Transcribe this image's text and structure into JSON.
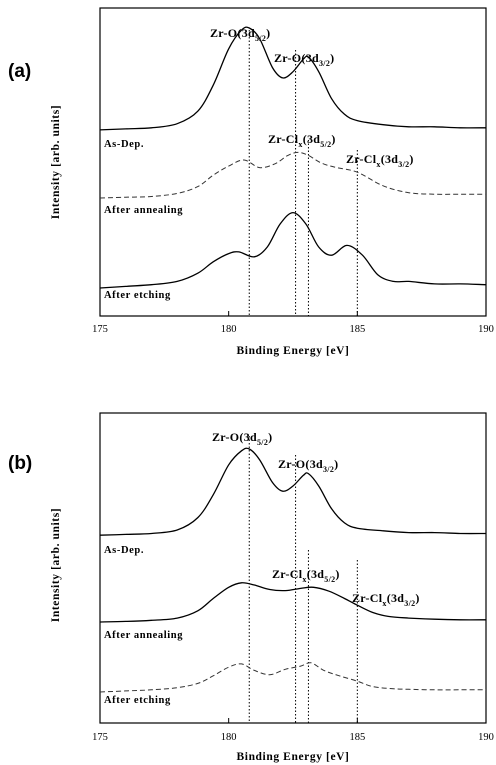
{
  "chart_data": [
    {
      "panel": "(a)",
      "type": "line",
      "xlabel": "Binding Energy [eV]",
      "ylabel": "Intensity [arb. units]",
      "xlim": [
        175,
        190
      ],
      "xticks": [
        "175",
        "180",
        "185",
        "190"
      ],
      "grid": false,
      "reference_lines_eV": [
        180.8,
        182.6,
        183.1,
        185.0
      ],
      "peak_labels": [
        {
          "main": "Zr-O(3d",
          "sub": "5/2",
          "tail": ")",
          "x": 180.8
        },
        {
          "main": "Zr-O(3d",
          "sub": "3/2",
          "tail": ")",
          "x": 183.1
        },
        {
          "main": "Zr-Cl",
          "sub": "x",
          "main2": "(3d",
          "sub2": "5/2",
          "tail": ")",
          "x": 182.6
        },
        {
          "main": "Zr-Cl",
          "sub": "x",
          "main2": "(3d",
          "sub2": "3/2",
          "tail": ")",
          "x": 185.0
        }
      ],
      "series": [
        {
          "name": "As-Dep.",
          "style": "solid",
          "x": [
            175,
            176,
            177,
            178,
            178.8,
            179.4,
            180.0,
            180.5,
            180.8,
            181.2,
            181.7,
            182.1,
            182.5,
            182.9,
            183.1,
            183.5,
            184.0,
            184.5,
            185.0,
            186.0,
            187.0,
            188.0,
            189.0,
            190
          ],
          "y": [
            0.02,
            0.03,
            0.04,
            0.08,
            0.2,
            0.45,
            0.8,
            0.98,
            1.0,
            0.9,
            0.62,
            0.52,
            0.58,
            0.7,
            0.72,
            0.58,
            0.32,
            0.17,
            0.11,
            0.07,
            0.05,
            0.05,
            0.04,
            0.04
          ]
        },
        {
          "name": "After annealing",
          "style": "dashed",
          "x": [
            175,
            176,
            177,
            178,
            178.8,
            179.4,
            180.0,
            180.6,
            181.2,
            181.8,
            182.3,
            182.7,
            183.1,
            183.6,
            184.2,
            185.0,
            186.0,
            187.0,
            188.0,
            189.0,
            190
          ],
          "y": [
            0.0,
            0.01,
            0.02,
            0.06,
            0.15,
            0.3,
            0.42,
            0.5,
            0.4,
            0.45,
            0.56,
            0.6,
            0.56,
            0.46,
            0.4,
            0.34,
            0.16,
            0.07,
            0.05,
            0.05,
            0.05
          ]
        },
        {
          "name": "After etching",
          "style": "solid",
          "x": [
            175,
            176,
            177,
            178,
            178.8,
            179.4,
            180.0,
            180.4,
            181.0,
            181.5,
            182.0,
            182.5,
            183.0,
            183.5,
            184.0,
            184.6,
            185.2,
            185.8,
            186.4,
            187.0,
            188.0,
            189.0,
            190
          ],
          "y": [
            0.0,
            0.02,
            0.04,
            0.08,
            0.18,
            0.32,
            0.42,
            0.44,
            0.38,
            0.5,
            0.78,
            0.92,
            0.78,
            0.5,
            0.4,
            0.52,
            0.4,
            0.16,
            0.08,
            0.08,
            0.05,
            0.05,
            0.04
          ]
        }
      ]
    },
    {
      "panel": "(b)",
      "type": "line",
      "xlabel": "Binding Energy [eV]",
      "ylabel": "Intensity [arb. units]",
      "xlim": [
        175,
        190
      ],
      "xticks": [
        "175",
        "180",
        "185",
        "190"
      ],
      "grid": false,
      "reference_lines_eV": [
        180.8,
        182.6,
        183.1,
        185.0
      ],
      "peak_labels": [
        {
          "main": "Zr-O(3d",
          "sub": "5/2",
          "tail": ")",
          "x": 180.8
        },
        {
          "main": "Zr-O(3d",
          "sub": "3/2",
          "tail": ")",
          "x": 183.1
        },
        {
          "main": "Zr-Cl",
          "sub": "x",
          "main2": "(3d",
          "sub2": "5/2",
          "tail": ")",
          "x": 182.6
        },
        {
          "main": "Zr-Cl",
          "sub": "x",
          "main2": "(3d",
          "sub2": "3/2",
          "tail": ")",
          "x": 185.0
        }
      ],
      "series": [
        {
          "name": "As-Dep.",
          "style": "solid",
          "x": [
            175,
            176,
            177,
            178,
            178.8,
            179.4,
            180.0,
            180.5,
            180.8,
            181.2,
            181.7,
            182.1,
            182.5,
            182.9,
            183.1,
            183.5,
            184.0,
            184.5,
            185.0,
            186.0,
            187.0,
            188.0,
            189.0,
            190
          ],
          "y": [
            0.02,
            0.03,
            0.04,
            0.08,
            0.22,
            0.48,
            0.82,
            0.98,
            1.0,
            0.88,
            0.62,
            0.52,
            0.58,
            0.7,
            0.72,
            0.58,
            0.32,
            0.16,
            0.1,
            0.07,
            0.05,
            0.05,
            0.04,
            0.04
          ]
        },
        {
          "name": "After annealing",
          "style": "solid",
          "x": [
            175,
            176,
            177,
            178,
            178.8,
            179.4,
            180.0,
            180.5,
            181.0,
            181.6,
            182.2,
            182.8,
            183.3,
            183.9,
            184.5,
            185.0,
            185.6,
            186.2,
            187.0,
            188.0,
            189.0,
            190
          ],
          "y": [
            0.0,
            0.01,
            0.03,
            0.07,
            0.2,
            0.42,
            0.62,
            0.7,
            0.66,
            0.58,
            0.56,
            0.6,
            0.62,
            0.55,
            0.42,
            0.3,
            0.17,
            0.1,
            0.07,
            0.05,
            0.04,
            0.04
          ]
        },
        {
          "name": "After etching",
          "style": "dashed",
          "x": [
            175,
            176,
            177,
            178,
            178.8,
            179.4,
            180.0,
            180.5,
            181.0,
            181.6,
            182.2,
            182.8,
            183.2,
            183.7,
            184.3,
            185.0,
            185.6,
            186.4,
            187.0,
            188.0,
            189.0,
            190
          ],
          "y": [
            0.0,
            0.02,
            0.04,
            0.08,
            0.16,
            0.3,
            0.46,
            0.52,
            0.4,
            0.32,
            0.42,
            0.48,
            0.54,
            0.4,
            0.3,
            0.2,
            0.1,
            0.06,
            0.05,
            0.04,
            0.04,
            0.04
          ]
        }
      ]
    }
  ]
}
